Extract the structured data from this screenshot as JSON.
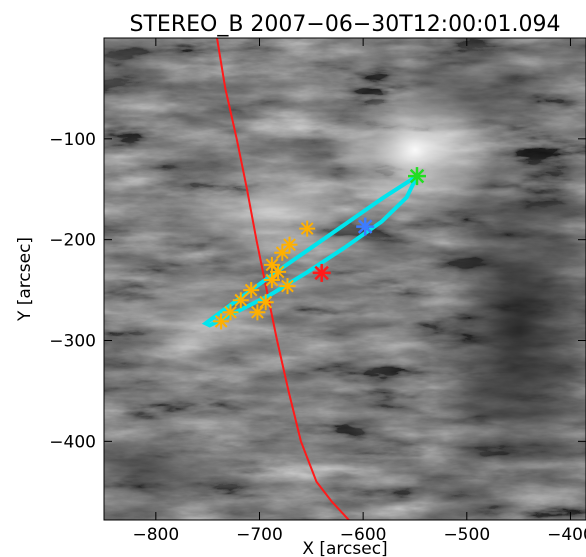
{
  "chart_data": {
    "type": "scatter",
    "title": "STEREO_B  2007−06−30T12:00:01.094",
    "xlabel": "X [arcsec]",
    "ylabel": "Y [arcsec]",
    "xlim": [
      -850,
      -385
    ],
    "ylim": [
      -478,
      0
    ],
    "x_ticks": [
      -800,
      -700,
      -600,
      -500,
      -400
    ],
    "x_tick_labels": [
      "−800",
      "−700",
      "−600",
      "−500",
      "−400"
    ],
    "y_ticks": [
      -100,
      -200,
      -300,
      -400
    ],
    "y_tick_labels": [
      "−100",
      "−200",
      "−300",
      "−400"
    ],
    "grid": false,
    "background_image": "EUV solar corona, grayscale",
    "colors": {
      "limb": "#ff1a1a",
      "loop": "#00e5ee",
      "loop_points": "#ffb000",
      "green_marker": "#22dd22",
      "blue_marker": "#3d7cff",
      "red_marker": "#ff1a1a"
    },
    "limb_curve": {
      "x": [
        -741,
        -733,
        -722,
        -712,
        -703,
        -693,
        -683,
        -672,
        -660,
        -645,
        -630,
        -612
      ],
      "y": [
        0,
        -50,
        -100,
        -150,
        -200,
        -250,
        -300,
        -350,
        -400,
        -440,
        -460,
        -480
      ]
    },
    "loop_curve": {
      "x": [
        -548,
        -580,
        -615,
        -650,
        -685,
        -712,
        -735,
        -752,
        -748,
        -725,
        -690,
        -655,
        -618,
        -582,
        -558,
        -548
      ],
      "y": [
        -137,
        -158,
        -183,
        -208,
        -233,
        -253,
        -270,
        -283,
        -285,
        -273,
        -255,
        -233,
        -208,
        -182,
        -158,
        -137
      ]
    },
    "loop_points": {
      "x": [
        -737,
        -728,
        -718,
        -708,
        -702,
        -694,
        -688,
        -682,
        -678,
        -671,
        -654,
        -688,
        -673
      ],
      "y": [
        -281,
        -272,
        -260,
        -250,
        -272,
        -262,
        -240,
        -232,
        -213,
        -205,
        -189,
        -225,
        -246
      ]
    },
    "markers": [
      {
        "x": -548,
        "y": -137,
        "color": "#22dd22"
      },
      {
        "x": -598,
        "y": -187,
        "color": "#3d7cff"
      },
      {
        "x": -640,
        "y": -233,
        "color": "#ff1a1a"
      }
    ]
  }
}
